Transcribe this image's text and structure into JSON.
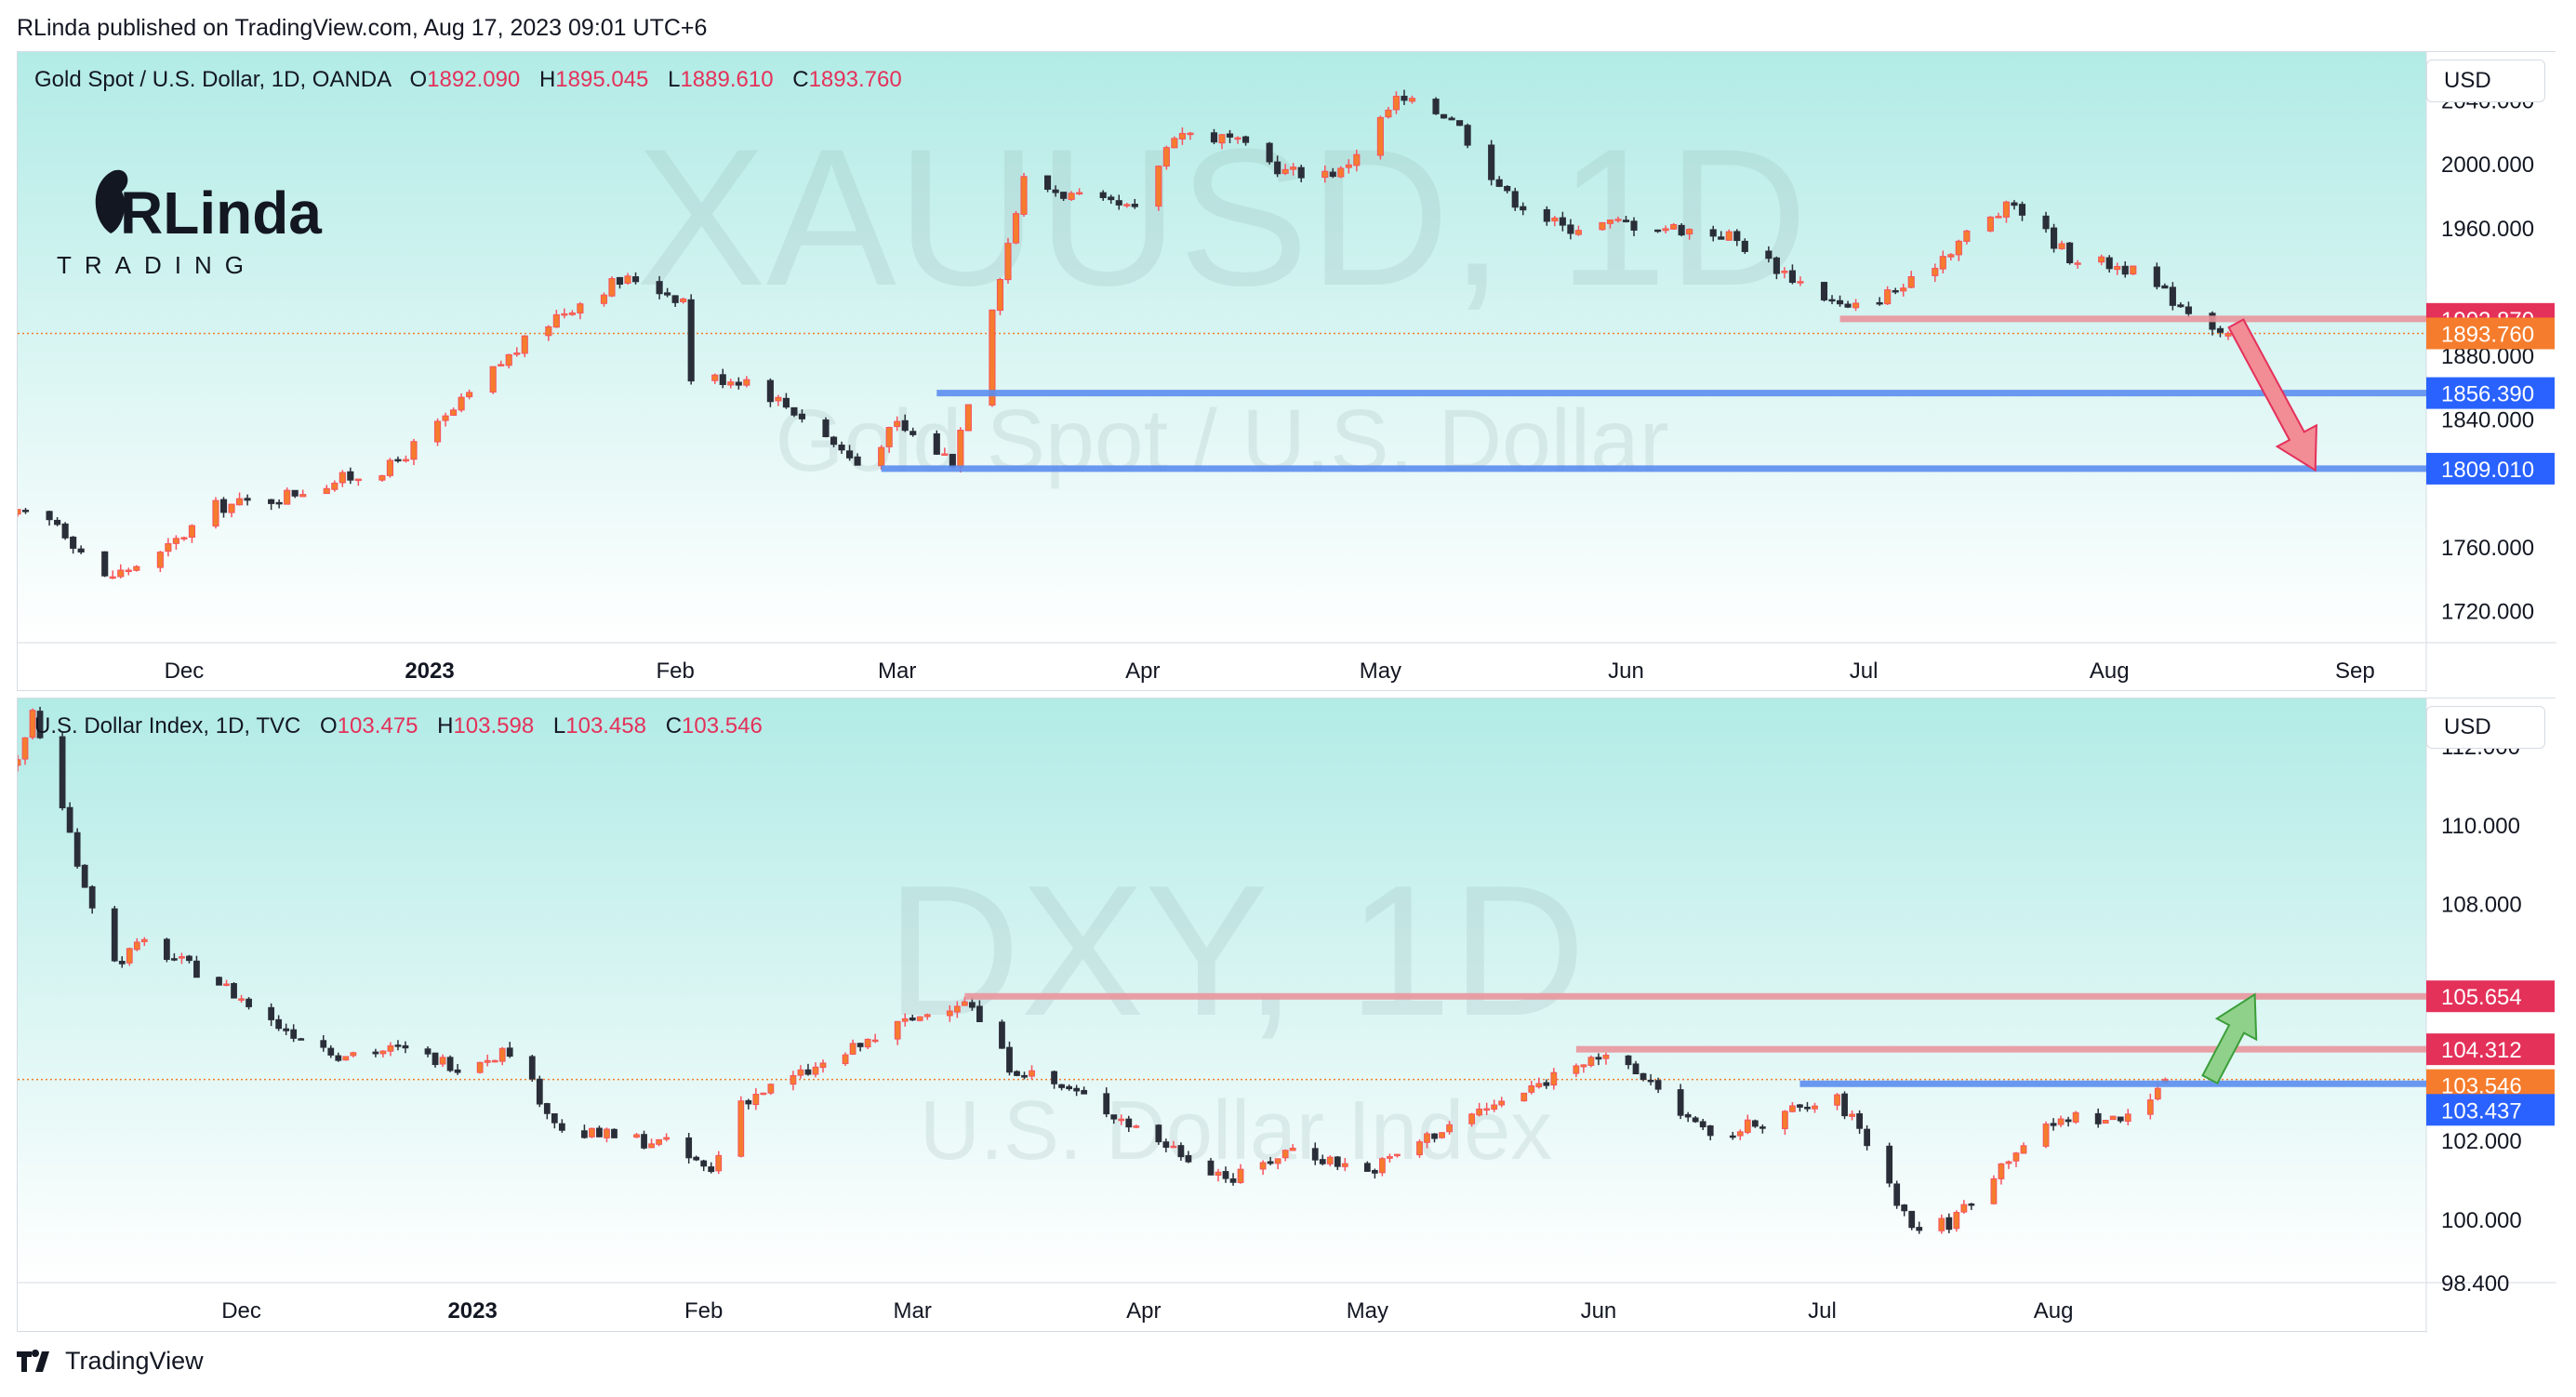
{
  "header": {
    "published": "RLinda published on TradingView.com, Aug 17, 2023 09:01 UTC+6"
  },
  "footer": {
    "brand": "TradingView"
  },
  "logo": {
    "text": "RLinda",
    "subtitle": "TRADING"
  },
  "colors": {
    "up": "#f7525f",
    "down": "#2a2e39",
    "upBody": "#f57c2c",
    "support": "#2962ff",
    "resistance": "#e4315a"
  },
  "panes": [
    {
      "symbol_title": "Gold Spot / U.S. Dollar, 1D, OANDA",
      "ohlc": {
        "o_label": "O",
        "o": "1892.090",
        "h_label": "H",
        "h": "1895.045",
        "l_label": "L",
        "l": "1889.610",
        "c_label": "C",
        "c": "1893.760"
      },
      "currency_button": "USD",
      "watermark_main": "XAUUSD, 1D",
      "watermark_sub": "Gold Spot / U.S. Dollar",
      "price_ticks": [
        "2040.000",
        "2000.000",
        "1960.000",
        "1880.000",
        "1840.000",
        "1760.000",
        "1720.000"
      ],
      "time_labels": [
        "Dec",
        "2023",
        "Feb",
        "Mar",
        "Apr",
        "May",
        "Jun",
        "Jul",
        "Aug",
        "Sep"
      ],
      "levels": [
        {
          "label": "1902.870",
          "value": 1902.87,
          "kind": "resistance"
        },
        {
          "label": "1893.760",
          "value": 1893.76,
          "kind": "last"
        },
        {
          "label": "1856.390",
          "value": 1856.39,
          "kind": "support"
        },
        {
          "label": "1809.010",
          "value": 1809.01,
          "kind": "support"
        }
      ]
    },
    {
      "symbol_title": "U.S. Dollar Index, 1D, TVC",
      "ohlc": {
        "o_label": "O",
        "o": "103.475",
        "h_label": "H",
        "h": "103.598",
        "l_label": "L",
        "l": "103.458",
        "c_label": "C",
        "c": "103.546"
      },
      "currency_button": "USD",
      "watermark_main": "DXY, 1D",
      "watermark_sub": "U.S. Dollar Index",
      "price_ticks": [
        "112.000",
        "110.000",
        "108.000",
        "102.000",
        "100.000",
        "98.400"
      ],
      "time_labels": [
        "Dec",
        "2023",
        "Feb",
        "Mar",
        "Apr",
        "May",
        "Jun",
        "Jul",
        "Aug"
      ],
      "levels": [
        {
          "label": "105.654",
          "value": 105.654,
          "kind": "resistance"
        },
        {
          "label": "104.312",
          "value": 104.312,
          "kind": "resistance"
        },
        {
          "label": "103.546",
          "value": 103.546,
          "kind": "last"
        },
        {
          "label": "103.437",
          "value": 103.437,
          "kind": "support"
        }
      ]
    }
  ],
  "chart_data": [
    {
      "type": "candlestick",
      "symbol": "XAUUSD",
      "timeframe": "1D",
      "ylim": [
        1700,
        2070
      ],
      "x_range": [
        "2022-11-10",
        "2023-09-10"
      ],
      "close_path": [
        [
          "2022-11-10",
          1780
        ],
        [
          "2022-11-15",
          1775
        ],
        [
          "2022-11-21",
          1740
        ],
        [
          "2022-11-28",
          1755
        ],
        [
          "2022-12-05",
          1785
        ],
        [
          "2022-12-12",
          1790
        ],
        [
          "2022-12-19",
          1800
        ],
        [
          "2022-12-27",
          1810
        ],
        [
          "2023-01-03",
          1840
        ],
        [
          "2023-01-10",
          1875
        ],
        [
          "2023-01-17",
          1905
        ],
        [
          "2023-01-24",
          1925
        ],
        [
          "2023-01-27",
          1928
        ],
        [
          "2023-02-02",
          1915
        ],
        [
          "2023-02-03",
          1866
        ],
        [
          "2023-02-10",
          1865
        ],
        [
          "2023-02-17",
          1842
        ],
        [
          "2023-02-24",
          1812
        ],
        [
          "2023-03-01",
          1836
        ],
        [
          "2023-03-08",
          1814
        ],
        [
          "2023-03-13",
          1912
        ],
        [
          "2023-03-17",
          1990
        ],
        [
          "2023-03-24",
          1978
        ],
        [
          "2023-03-31",
          1970
        ],
        [
          "2023-04-05",
          2020
        ],
        [
          "2023-04-12",
          2015
        ],
        [
          "2023-04-19",
          1995
        ],
        [
          "2023-04-26",
          1995
        ],
        [
          "2023-05-03",
          2040
        ],
        [
          "2023-05-10",
          2030
        ],
        [
          "2023-05-17",
          1980
        ],
        [
          "2023-05-24",
          1960
        ],
        [
          "2023-05-31",
          1963
        ],
        [
          "2023-06-07",
          1960
        ],
        [
          "2023-06-14",
          1955
        ],
        [
          "2023-06-21",
          1932
        ],
        [
          "2023-06-29",
          1908
        ],
        [
          "2023-07-07",
          1925
        ],
        [
          "2023-07-14",
          1956
        ],
        [
          "2023-07-20",
          1975
        ],
        [
          "2023-07-27",
          1942
        ],
        [
          "2023-08-03",
          1935
        ],
        [
          "2023-08-10",
          1912
        ],
        [
          "2023-08-16",
          1894
        ]
      ],
      "last": {
        "open": 1892.09,
        "high": 1895.045,
        "low": 1889.61,
        "close": 1893.76
      },
      "horizontal_levels": [
        1902.87,
        1856.39,
        1809.01
      ],
      "projection_arrow": "down toward 1809.010"
    },
    {
      "type": "candlestick",
      "symbol": "DXY",
      "timeframe": "1D",
      "ylim": [
        98.4,
        113.2
      ],
      "x_range": [
        "2022-11-01",
        "2023-09-20"
      ],
      "close_path": [
        [
          "2022-11-01",
          111.5
        ],
        [
          "2022-11-03",
          112.9
        ],
        [
          "2022-11-10",
          108.5
        ],
        [
          "2022-11-14",
          106.5
        ],
        [
          "2022-11-18",
          107.0
        ],
        [
          "2022-11-28",
          106.0
        ],
        [
          "2022-12-05",
          105.0
        ],
        [
          "2022-12-14",
          104.2
        ],
        [
          "2022-12-22",
          104.3
        ],
        [
          "2022-12-30",
          103.9
        ],
        [
          "2023-01-06",
          104.3
        ],
        [
          "2023-01-13",
          102.2
        ],
        [
          "2023-01-20",
          102.1
        ],
        [
          "2023-01-27",
          101.9
        ],
        [
          "2023-02-02",
          101.2
        ],
        [
          "2023-02-06",
          103.0
        ],
        [
          "2023-02-17",
          103.9
        ],
        [
          "2023-02-27",
          104.9
        ],
        [
          "2023-03-08",
          105.6
        ],
        [
          "2023-03-14",
          103.9
        ],
        [
          "2023-03-24",
          103.1
        ],
        [
          "2023-04-03",
          102.0
        ],
        [
          "2023-04-13",
          101.0
        ],
        [
          "2023-04-21",
          101.8
        ],
        [
          "2023-05-01",
          101.2
        ],
        [
          "2023-05-12",
          102.4
        ],
        [
          "2023-05-22",
          103.2
        ],
        [
          "2023-05-31",
          104.2
        ],
        [
          "2023-06-08",
          103.5
        ],
        [
          "2023-06-16",
          102.0
        ],
        [
          "2023-06-26",
          102.7
        ],
        [
          "2023-07-03",
          103.0
        ],
        [
          "2023-07-06",
          102.3
        ],
        [
          "2023-07-13",
          99.8
        ],
        [
          "2023-07-18",
          99.9
        ],
        [
          "2023-07-27",
          101.8
        ],
        [
          "2023-08-03",
          102.6
        ],
        [
          "2023-08-10",
          102.5
        ],
        [
          "2023-08-16",
          103.546
        ]
      ],
      "last": {
        "open": 103.475,
        "high": 103.598,
        "low": 103.458,
        "close": 103.546
      },
      "horizontal_levels": [
        105.654,
        104.312,
        103.437
      ],
      "projection_arrow": "up toward 105.654"
    }
  ]
}
